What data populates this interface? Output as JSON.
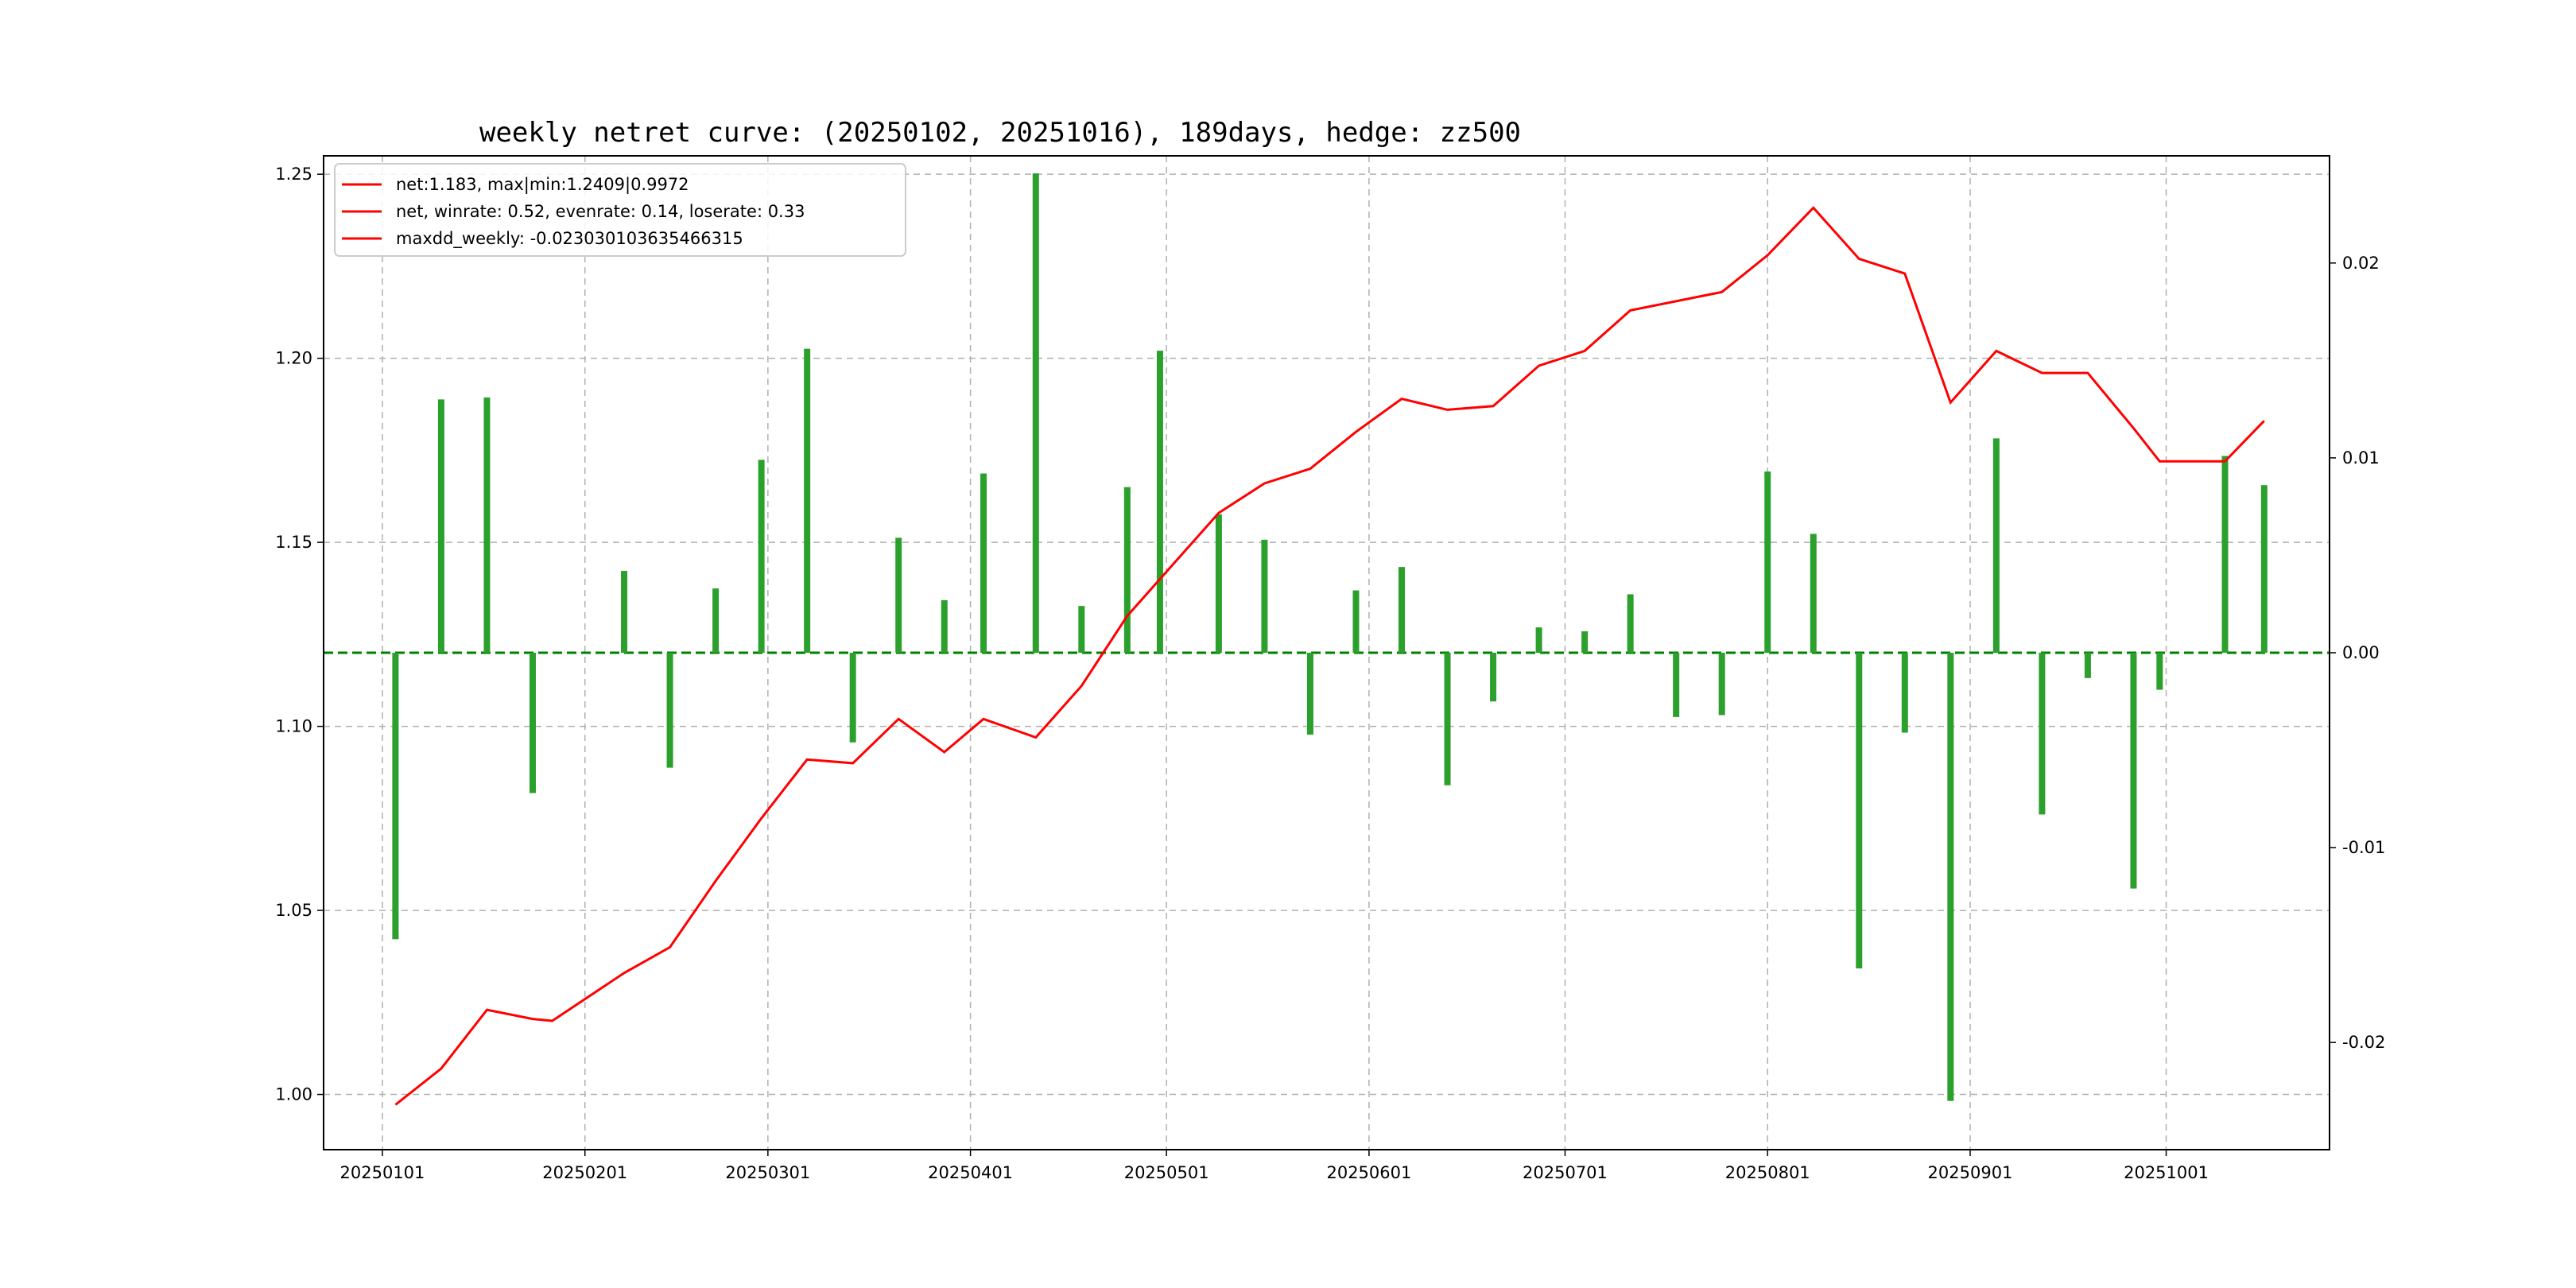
{
  "chart_data": {
    "type": "bar+line",
    "title": "weekly netret curve: (20250102, 20251016), 189days, hedge: zz500",
    "legend": {
      "placement": "top-left",
      "entries": [
        "net:1.183, max|min:1.2409|0.9972",
        "net, winrate: 0.52, evenrate: 0.14, loserate: 0.33",
        "maxdd_weekly: -0.023030103635466315"
      ]
    },
    "grid": true,
    "colors": {
      "line": "#ff0000",
      "bars": "#2ca02c",
      "zero_line": "#008000",
      "grid": "#b0b0b0"
    },
    "x_axis": {
      "ticks": [
        "20250101",
        "20250201",
        "20250301",
        "20250401",
        "20250501",
        "20250601",
        "20250701",
        "20250801",
        "20250901",
        "20251001"
      ],
      "tick_dates": [
        "2025-01-01",
        "2025-02-01",
        "2025-03-01",
        "2025-04-01",
        "2025-05-01",
        "2025-06-01",
        "2025-07-01",
        "2025-08-01",
        "2025-09-01",
        "2025-10-01"
      ],
      "range": [
        "2024-12-23",
        "2025-10-26"
      ]
    },
    "y_left": {
      "ylim": [
        0.985,
        1.255
      ],
      "ticks": [
        "1.00",
        "1.05",
        "1.10",
        "1.15",
        "1.20",
        "1.25"
      ],
      "tick_values": [
        1.0,
        1.05,
        1.1,
        1.15,
        1.2,
        1.25
      ]
    },
    "y_right": {
      "ylim": [
        -0.0255,
        0.0255
      ],
      "ticks": [
        "-0.02",
        "-0.01",
        "0.00",
        "0.01",
        "0.02"
      ],
      "tick_values": [
        -0.02,
        -0.01,
        0.0,
        0.01,
        0.02
      ]
    },
    "net_curve": {
      "dates": [
        "2025-01-03",
        "2025-01-10",
        "2025-01-17",
        "2025-01-24",
        "2025-01-27",
        "2025-02-07",
        "2025-02-14",
        "2025-02-21",
        "2025-02-28",
        "2025-03-07",
        "2025-03-14",
        "2025-03-21",
        "2025-03-28",
        "2025-04-03",
        "2025-04-11",
        "2025-04-18",
        "2025-04-25",
        "2025-04-30",
        "2025-05-09",
        "2025-05-16",
        "2025-05-23",
        "2025-05-30",
        "2025-06-06",
        "2025-06-13",
        "2025-06-20",
        "2025-06-27",
        "2025-07-04",
        "2025-07-11",
        "2025-07-25",
        "2025-08-01",
        "2025-08-08",
        "2025-08-15",
        "2025-08-22",
        "2025-08-29",
        "2025-09-05",
        "2025-09-12",
        "2025-09-19",
        "2025-09-26",
        "2025-09-30",
        "2025-10-10",
        "2025-10-16"
      ],
      "values": [
        0.9972,
        1.007,
        1.023,
        1.0205,
        1.02,
        1.033,
        1.04,
        1.058,
        1.075,
        1.091,
        1.09,
        1.102,
        1.093,
        1.102,
        1.097,
        1.111,
        1.13,
        1.14,
        1.158,
        1.166,
        1.17,
        1.18,
        1.189,
        1.186,
        1.187,
        1.198,
        1.202,
        1.213,
        1.218,
        1.228,
        1.2409,
        1.227,
        1.223,
        1.188,
        1.202,
        1.196,
        1.196,
        1.181,
        1.172,
        1.172,
        1.183
      ]
    },
    "weekly_returns": {
      "dates": [
        "2025-01-03",
        "2025-01-10",
        "2025-01-17",
        "2025-01-24",
        "2025-02-07",
        "2025-02-14",
        "2025-02-21",
        "2025-02-28",
        "2025-03-07",
        "2025-03-14",
        "2025-03-21",
        "2025-03-28",
        "2025-04-03",
        "2025-04-11",
        "2025-04-18",
        "2025-04-25",
        "2025-04-30",
        "2025-05-09",
        "2025-05-16",
        "2025-05-23",
        "2025-05-30",
        "2025-06-06",
        "2025-06-13",
        "2025-06-20",
        "2025-06-27",
        "2025-07-04",
        "2025-07-11",
        "2025-07-18",
        "2025-07-25",
        "2025-08-01",
        "2025-08-08",
        "2025-08-15",
        "2025-08-22",
        "2025-08-29",
        "2025-09-05",
        "2025-09-12",
        "2025-09-19",
        "2025-09-26",
        "2025-09-30",
        "2025-10-10",
        "2025-10-16"
      ],
      "values": [
        -0.0147,
        0.013,
        0.0131,
        -0.0072,
        0.0042,
        -0.0059,
        0.0033,
        0.0099,
        0.0156,
        -0.0046,
        0.0059,
        0.0027,
        0.0092,
        0.0246,
        0.0024,
        0.0085,
        0.0155,
        0.0071,
        0.0058,
        -0.0042,
        0.0032,
        0.0044,
        -0.0068,
        -0.0025,
        0.0013,
        0.0011,
        0.003,
        -0.0033,
        -0.0032,
        0.0093,
        0.0061,
        -0.0162,
        -0.0041,
        -0.023,
        0.011,
        -0.0083,
        -0.0013,
        -0.0121,
        -0.0019,
        0.0101,
        0.0086
      ]
    }
  }
}
